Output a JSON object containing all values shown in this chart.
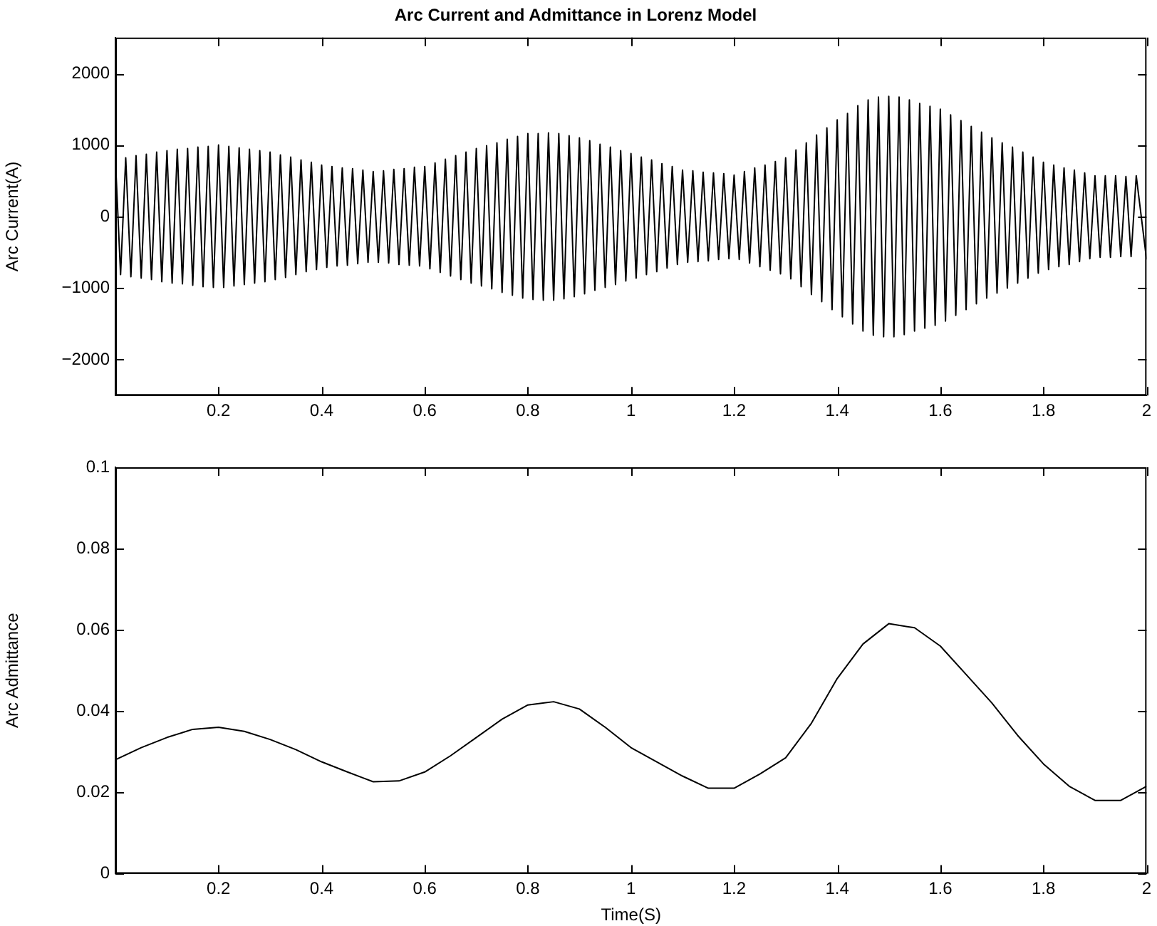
{
  "chart_data": [
    {
      "type": "line",
      "title": "Arc Current and Admittance in Lorenz Model",
      "ylabel": "Arc Current(A)",
      "xlim": [
        0,
        2
      ],
      "xticks": [
        0.2,
        0.4,
        0.6,
        0.8,
        1,
        1.2,
        1.4,
        1.6,
        1.8,
        2
      ],
      "ylim": [
        -2500,
        2500
      ],
      "yticks": [
        -2000,
        -1000,
        0,
        1000,
        2000
      ],
      "grid": false,
      "legend": false,
      "marker": "none",
      "line_style": "solid",
      "x": [
        0,
        0.01,
        0.02,
        0.03,
        0.04,
        0.05,
        0.06,
        0.07,
        0.08,
        0.09,
        0.1,
        0.11,
        0.12,
        0.13,
        0.14,
        0.15,
        0.16,
        0.17,
        0.18,
        0.19,
        0.2,
        0.21,
        0.22,
        0.23,
        0.24,
        0.25,
        0.26,
        0.27,
        0.28,
        0.29,
        0.3,
        0.31,
        0.32,
        0.33,
        0.34,
        0.35,
        0.36,
        0.37,
        0.38,
        0.39,
        0.4,
        0.41,
        0.42,
        0.43,
        0.44,
        0.45,
        0.46,
        0.47,
        0.48,
        0.49,
        0.5,
        0.51,
        0.52,
        0.53,
        0.54,
        0.55,
        0.56,
        0.57,
        0.58,
        0.59,
        0.6,
        0.61,
        0.62,
        0.63,
        0.64,
        0.65,
        0.66,
        0.67,
        0.68,
        0.69,
        0.7,
        0.71,
        0.72,
        0.73,
        0.74,
        0.75,
        0.76,
        0.77,
        0.78,
        0.79,
        0.8,
        0.81,
        0.82,
        0.83,
        0.84,
        0.85,
        0.86,
        0.87,
        0.88,
        0.89,
        0.9,
        0.91,
        0.92,
        0.93,
        0.94,
        0.95,
        0.96,
        0.97,
        0.98,
        0.99,
        1,
        1.01,
        1.02,
        1.03,
        1.04,
        1.05,
        1.06,
        1.07,
        1.08,
        1.09,
        1.1,
        1.11,
        1.12,
        1.13,
        1.14,
        1.15,
        1.16,
        1.17,
        1.18,
        1.19,
        1.2,
        1.21,
        1.22,
        1.23,
        1.24,
        1.25,
        1.26,
        1.27,
        1.28,
        1.29,
        1.3,
        1.31,
        1.32,
        1.33,
        1.34,
        1.35,
        1.36,
        1.37,
        1.38,
        1.39,
        1.4,
        1.41,
        1.42,
        1.43,
        1.44,
        1.45,
        1.46,
        1.47,
        1.48,
        1.49,
        1.5,
        1.51,
        1.52,
        1.53,
        1.54,
        1.55,
        1.56,
        1.57,
        1.58,
        1.59,
        1.6,
        1.61,
        1.62,
        1.63,
        1.64,
        1.65,
        1.66,
        1.67,
        1.68,
        1.69,
        1.7,
        1.71,
        1.72,
        1.73,
        1.74,
        1.75,
        1.76,
        1.77,
        1.78,
        1.79,
        1.8,
        1.81,
        1.82,
        1.83,
        1.84,
        1.85,
        1.86,
        1.87,
        1.88,
        1.89,
        1.9,
        1.91,
        1.92,
        1.93,
        1.94,
        1.95,
        1.96,
        1.97,
        1.98,
        2
      ],
      "series": [
        {
          "color": "#000000",
          "values": [
            800,
            -810,
            820,
            -840,
            850,
            -860,
            870,
            -880,
            900,
            -910,
            920,
            -930,
            940,
            -940,
            950,
            -960,
            970,
            -980,
            980,
            -990,
            1000,
            -990,
            980,
            -970,
            960,
            -950,
            940,
            -930,
            920,
            -910,
            900,
            -880,
            860,
            -850,
            830,
            -810,
            790,
            -770,
            760,
            -740,
            720,
            -710,
            700,
            -690,
            680,
            -680,
            670,
            -660,
            650,
            -640,
            630,
            -640,
            640,
            -650,
            660,
            -670,
            670,
            -680,
            690,
            -690,
            700,
            -730,
            750,
            -780,
            800,
            -830,
            850,
            -880,
            900,
            -930,
            950,
            -970,
            990,
            -1010,
            1030,
            -1060,
            1080,
            -1100,
            1120,
            -1140,
            1160,
            -1160,
            1160,
            -1170,
            1170,
            -1170,
            1160,
            -1150,
            1130,
            -1120,
            1100,
            -1080,
            1060,
            -1030,
            1010,
            -990,
            970,
            -950,
            920,
            -900,
            880,
            -860,
            830,
            -810,
            790,
            -770,
            740,
            -720,
            700,
            -670,
            650,
            -640,
            640,
            -630,
            620,
            -620,
            610,
            -600,
            600,
            -590,
            580,
            -600,
            630,
            -650,
            680,
            -700,
            720,
            -750,
            770,
            -800,
            820,
            -870,
            930,
            -980,
            1030,
            -1090,
            1140,
            -1190,
            1240,
            -1300,
            1350,
            -1400,
            1440,
            -1500,
            1550,
            -1600,
            1630,
            -1660,
            1670,
            -1680,
            1680,
            -1680,
            1670,
            -1650,
            1630,
            -1600,
            1580,
            -1560,
            1540,
            -1520,
            1500,
            -1460,
            1420,
            -1380,
            1340,
            -1300,
            1260,
            -1220,
            1180,
            -1140,
            1100,
            -1070,
            1030,
            -1000,
            970,
            -930,
            900,
            -860,
            830,
            -790,
            760,
            -740,
            720,
            -700,
            680,
            -670,
            650,
            -630,
            610,
            -590,
            570,
            -570,
            570,
            -570,
            570,
            -560,
            560,
            -560,
            570,
            -600
          ]
        }
      ]
    },
    {
      "type": "line",
      "xlabel": "Time(S)",
      "ylabel": "Arc Admittance",
      "xlim": [
        0,
        2
      ],
      "xticks": [
        0.2,
        0.4,
        0.6,
        0.8,
        1,
        1.2,
        1.4,
        1.6,
        1.8,
        2
      ],
      "ylim": [
        0,
        0.1
      ],
      "yticks": [
        0,
        0.02,
        0.04,
        0.06,
        0.08,
        0.1
      ],
      "grid": false,
      "legend": false,
      "marker": "none",
      "line_style": "solid",
      "x": [
        0,
        0.05,
        0.1,
        0.15,
        0.2,
        0.25,
        0.3,
        0.35,
        0.4,
        0.45,
        0.5,
        0.55,
        0.6,
        0.65,
        0.7,
        0.75,
        0.8,
        0.85,
        0.9,
        0.95,
        1,
        1.05,
        1.1,
        1.15,
        1.2,
        1.25,
        1.3,
        1.35,
        1.4,
        1.45,
        1.5,
        1.55,
        1.6,
        1.65,
        1.7,
        1.75,
        1.8,
        1.85,
        1.9,
        1.95,
        2
      ],
      "series": [
        {
          "color": "#000000",
          "values": [
            0.028,
            0.031,
            0.0335,
            0.0355,
            0.036,
            0.035,
            0.033,
            0.0305,
            0.0275,
            0.025,
            0.0226,
            0.0228,
            0.025,
            0.029,
            0.0335,
            0.038,
            0.0415,
            0.0423,
            0.0405,
            0.036,
            0.031,
            0.0275,
            0.024,
            0.021,
            0.021,
            0.0245,
            0.0285,
            0.037,
            0.048,
            0.0565,
            0.0615,
            0.0605,
            0.056,
            0.049,
            0.042,
            0.034,
            0.027,
            0.0215,
            0.018,
            0.018,
            0.0215
          ]
        }
      ]
    }
  ]
}
